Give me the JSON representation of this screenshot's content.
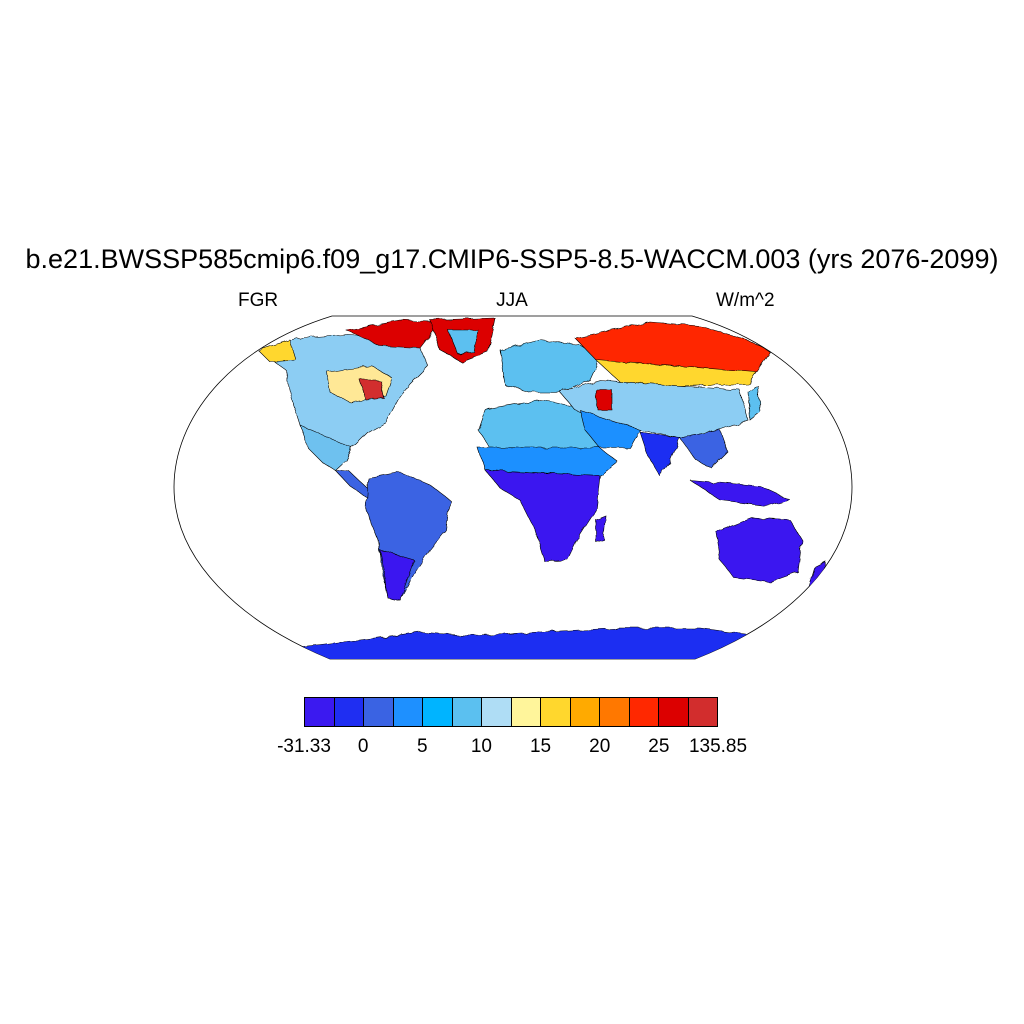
{
  "title": "b.e21.BWSSP585cmip6.f09_g17.CMIP6-SSP5-8.5-WACCM.003 (yrs 2076-2099)",
  "subtitle_left": "FGR",
  "subtitle_center": "JJA",
  "subtitle_right": "W/m^2",
  "colorbar": {
    "colors": [
      "#3b19f0",
      "#1f2ef2",
      "#3a63e3",
      "#1e90ff",
      "#00b4ff",
      "#5bc0f0",
      "#afddf5",
      "#fff59b",
      "#ffd72d",
      "#ffaa00",
      "#ff7800",
      "#ff2800",
      "#dc0000",
      "#d22d2d"
    ],
    "labels": [
      "-31.33",
      "0",
      "5",
      "10",
      "15",
      "20",
      "25",
      "135.85"
    ]
  }
}
